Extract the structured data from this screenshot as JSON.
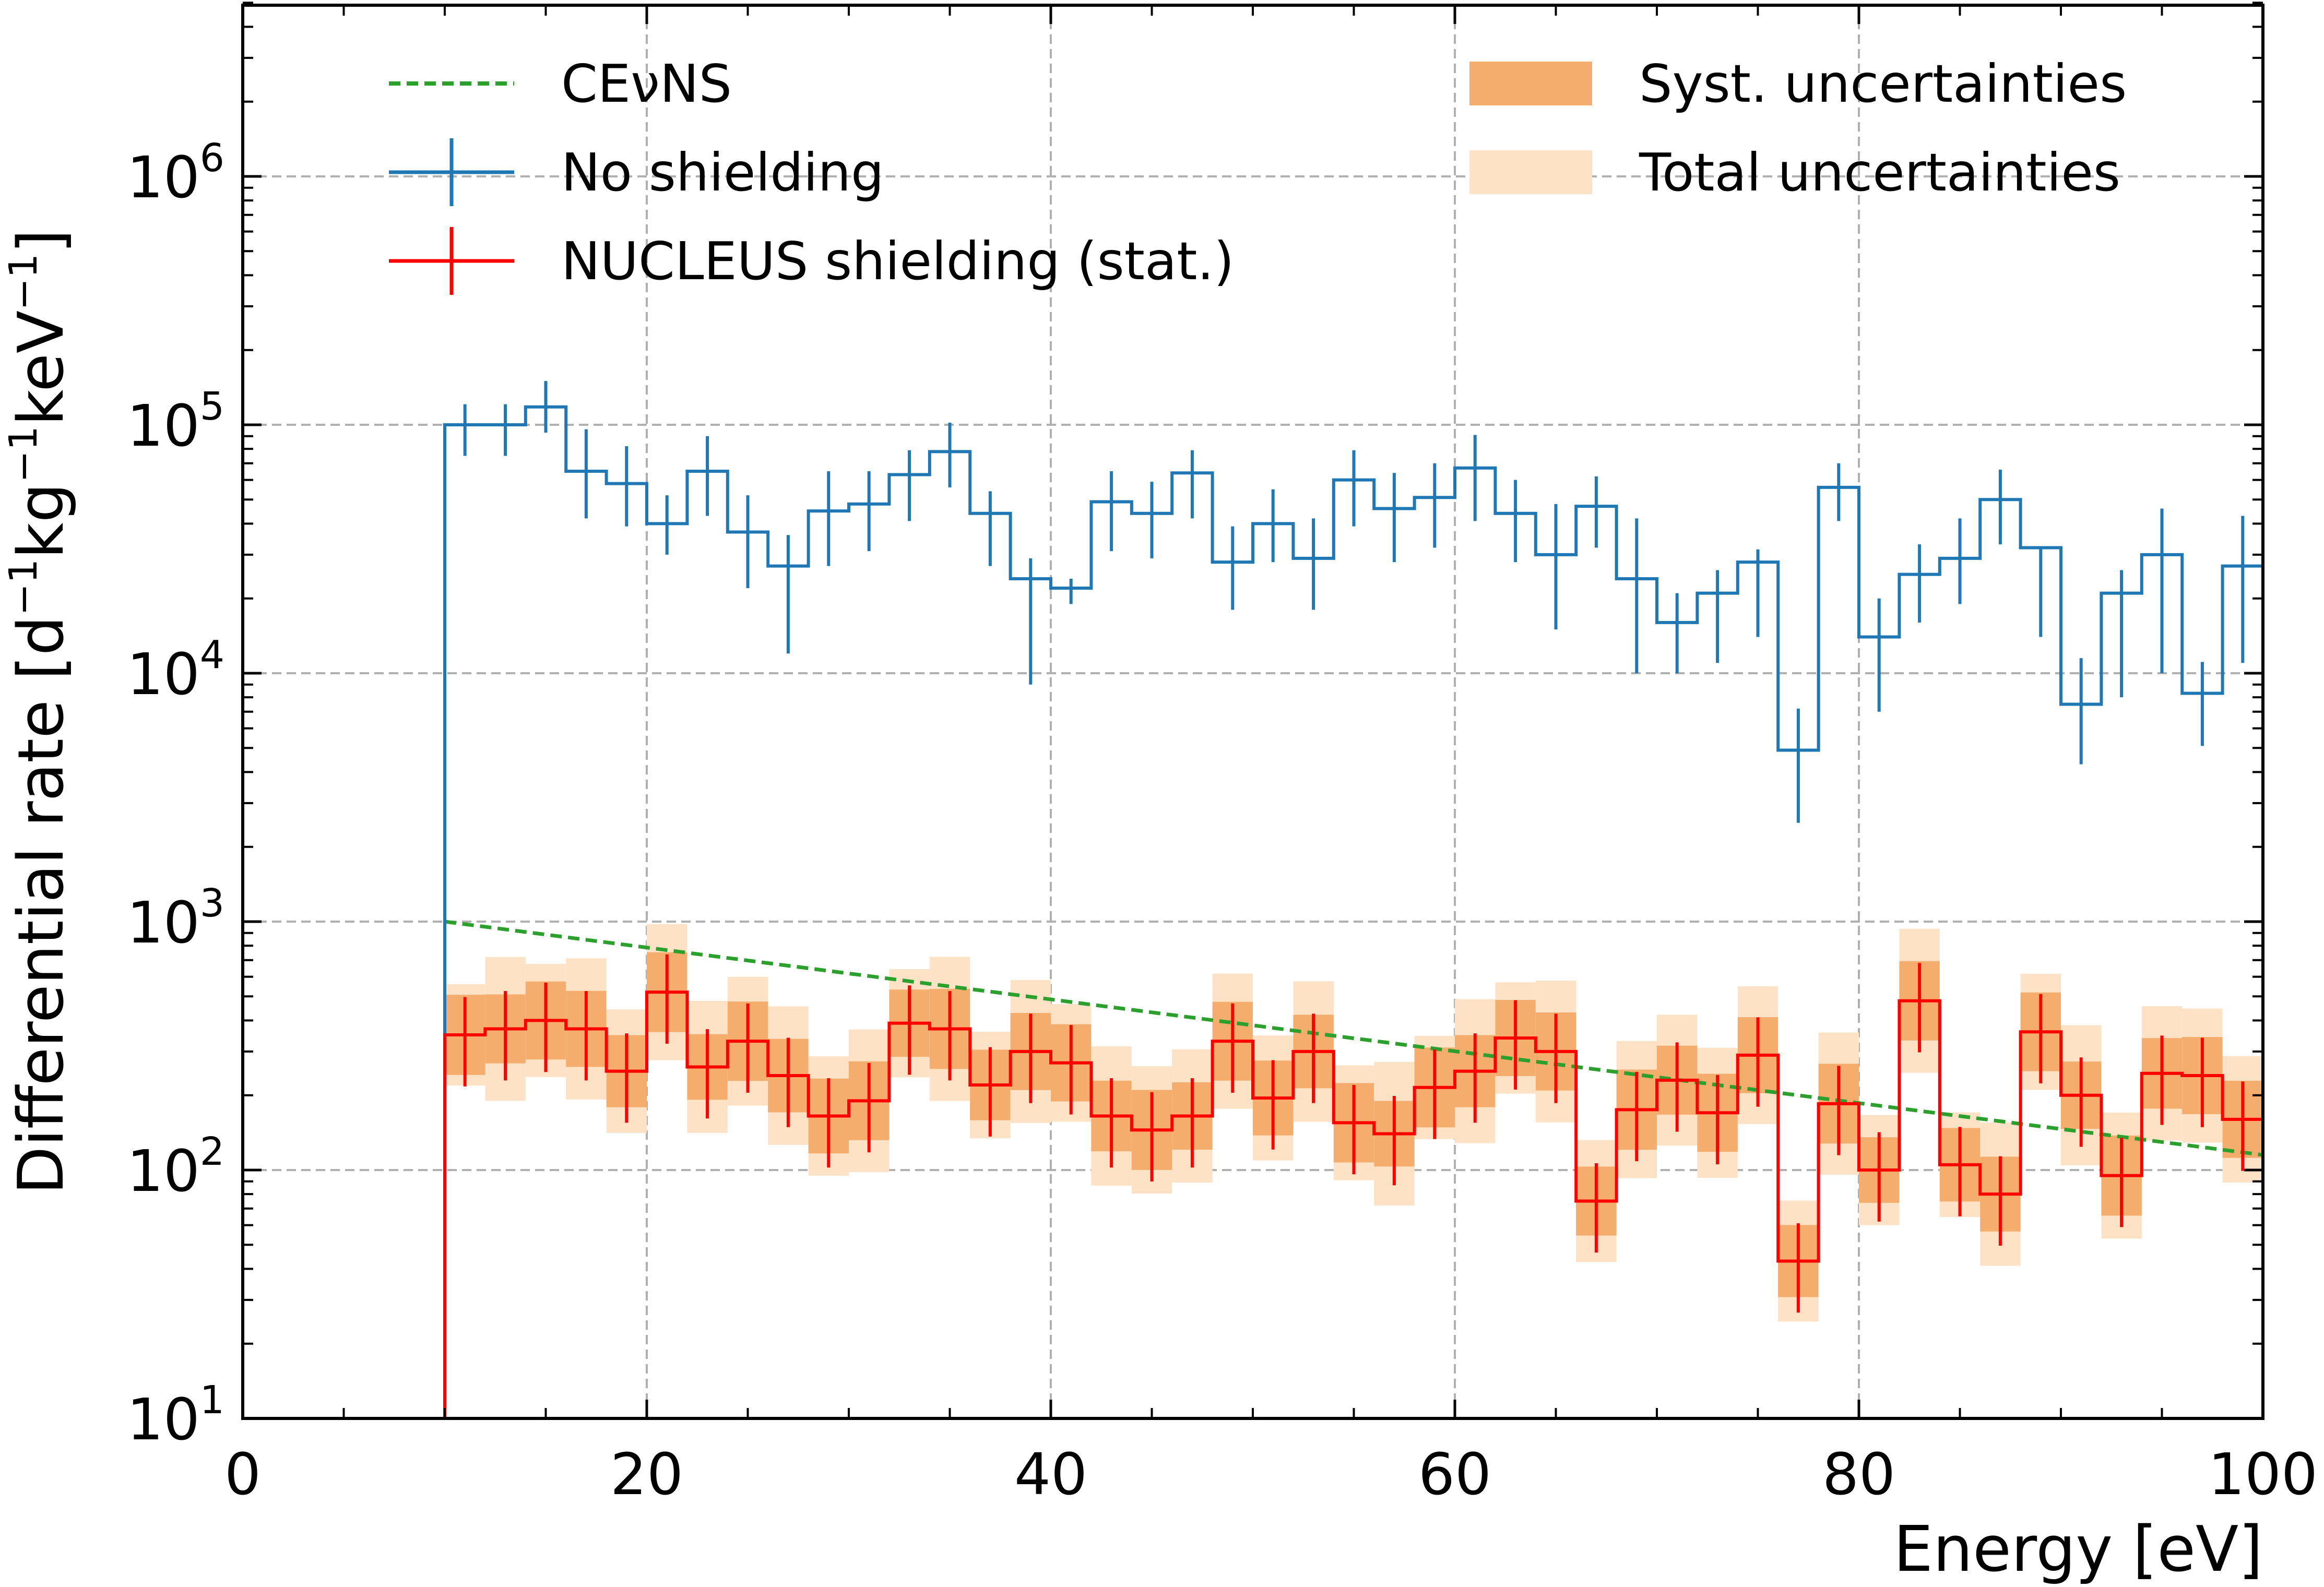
{
  "chart_data": {
    "type": "line",
    "xlabel": "Energy [eV]",
    "ylabel": {
      "base": "Differential rate [d",
      "exp1": "−1",
      "mid1": "kg",
      "exp2": "−1",
      "mid2": "keV",
      "exp3": "−1",
      "end": "]"
    },
    "xlim": [
      0,
      100
    ],
    "ylim": [
      10,
      5000000
    ],
    "yscale": "log",
    "grid": true,
    "x_ticks": [
      {
        "value": 0,
        "label": "0"
      },
      {
        "value": 20,
        "label": "20"
      },
      {
        "value": 40,
        "label": "40"
      },
      {
        "value": 60,
        "label": "60"
      },
      {
        "value": 80,
        "label": "80"
      },
      {
        "value": 100,
        "label": "100"
      }
    ],
    "y_ticks": [
      {
        "value": 10,
        "base": "10",
        "exp": "1"
      },
      {
        "value": 100,
        "base": "10",
        "exp": "2"
      },
      {
        "value": 1000,
        "base": "10",
        "exp": "3"
      },
      {
        "value": 10000,
        "base": "10",
        "exp": "4"
      },
      {
        "value": 100000,
        "base": "10",
        "exp": "5"
      },
      {
        "value": 1000000,
        "base": "10",
        "exp": "6"
      }
    ],
    "legend": [
      {
        "label": "CEνNS",
        "kind": "dashed",
        "color": "#2ca02c"
      },
      {
        "label": "No shielding",
        "kind": "errorbar",
        "color": "#1f77b4"
      },
      {
        "label": "NUCLEUS shielding (stat.)",
        "kind": "errorbar",
        "color": "#ff0000"
      },
      {
        "label": "Syst. uncertainties",
        "kind": "band",
        "color": "#f5ad6e"
      },
      {
        "label": "Total uncertainties",
        "kind": "band",
        "color": "#fde2c5"
      }
    ],
    "bins": {
      "start": 10,
      "width": 2,
      "count": 45
    },
    "series": [
      {
        "name": "No shielding",
        "color": "#1f77b4",
        "values": [
          100000,
          100000,
          118000,
          65000,
          58000,
          40000,
          65000,
          37000,
          27000,
          45000,
          48000,
          63000,
          78000,
          44000,
          24000,
          22000,
          49000,
          44000,
          64000,
          28000,
          40000,
          29000,
          60000,
          46000,
          51000,
          67000,
          44000,
          30000,
          47000,
          24000,
          16000,
          21000,
          28000,
          4900,
          56000,
          14000,
          25000,
          29000,
          50000,
          32000,
          7500,
          21000,
          30000,
          8300,
          27000
        ],
        "err_low": [
          25000,
          25000,
          25000,
          23000,
          19000,
          10000,
          22000,
          15000,
          15000,
          18000,
          17000,
          22000,
          22000,
          17000,
          15000,
          3000,
          18000,
          15000,
          22000,
          10000,
          12000,
          11000,
          21000,
          18000,
          19000,
          26000,
          16000,
          15000,
          15000,
          14000,
          6000,
          10000,
          14000,
          2400,
          15000,
          7000,
          9000,
          10000,
          17000,
          18000,
          3200,
          13000,
          20000,
          3200,
          16000
        ],
        "err_high": [
          21000,
          21000,
          32000,
          31000,
          24000,
          12000,
          25000,
          15000,
          9000,
          20000,
          17000,
          16000,
          24000,
          10000,
          5000,
          2000,
          16000,
          15000,
          15000,
          11000,
          15000,
          13000,
          19000,
          18000,
          19000,
          24000,
          16000,
          18000,
          15000,
          18000,
          5000,
          5000,
          3500,
          2300,
          14000,
          6000,
          8000,
          13000,
          16000,
          0,
          4000,
          5000,
          16000,
          2800,
          16000
        ]
      },
      {
        "name": "NUCLEUS shielding (stat.)",
        "color": "#ff0000",
        "values": [
          350,
          370,
          400,
          370,
          250,
          520,
          260,
          330,
          240,
          165,
          190,
          390,
          370,
          220,
          300,
          270,
          165,
          145,
          165,
          330,
          195,
          300,
          155,
          140,
          215,
          250,
          340,
          300,
          75,
          175,
          230,
          170,
          290,
          43,
          185,
          100,
          480,
          105,
          80,
          360,
          200,
          95,
          245,
          240,
          160
        ]
      },
      {
        "name": "CEνNS",
        "color": "#2ca02c",
        "values_at": [
          10,
          100
        ],
        "values": [
          1000,
          115
        ]
      }
    ]
  }
}
